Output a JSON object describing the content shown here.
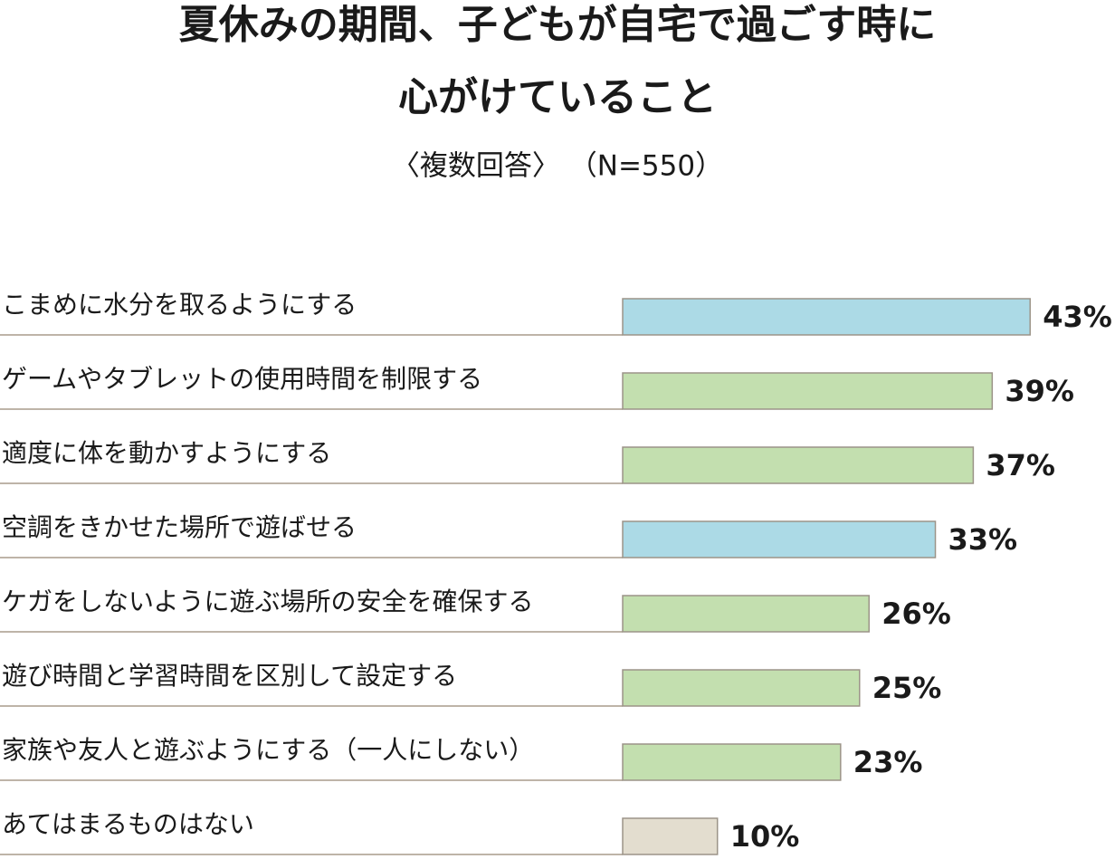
{
  "chart_data": {
    "type": "barh",
    "title": [
      "夏休みの期間、子どもが自宅で過ごす時に",
      "心がけていること"
    ],
    "subtitle": "〈複数回答〉 （N=550）",
    "categories": [
      "こまめに水分を取るようにする",
      "ゲームやタブレットの使用時間を制限する",
      "適度に体を動かすようにする",
      "空調をきかせた場所で遊ばせる",
      "ケガをしないように遊ぶ場所の安全を確保する",
      "遊び時間と学習時間を区別して設定する",
      "家族や友人と遊ぶようにする（一人にしない）",
      "あてはまるものはない"
    ],
    "values": [
      43,
      39,
      37,
      33,
      26,
      25,
      23,
      10
    ],
    "value_labels": [
      "43%",
      "39%",
      "37%",
      "33%",
      "26%",
      "25%",
      "23%",
      "10%"
    ],
    "colors": [
      "#acdae6",
      "#c3dfaf",
      "#c3dfaf",
      "#acdae6",
      "#c3dfaf",
      "#c3dfaf",
      "#c3dfaf",
      "#e3ddcf"
    ]
  }
}
